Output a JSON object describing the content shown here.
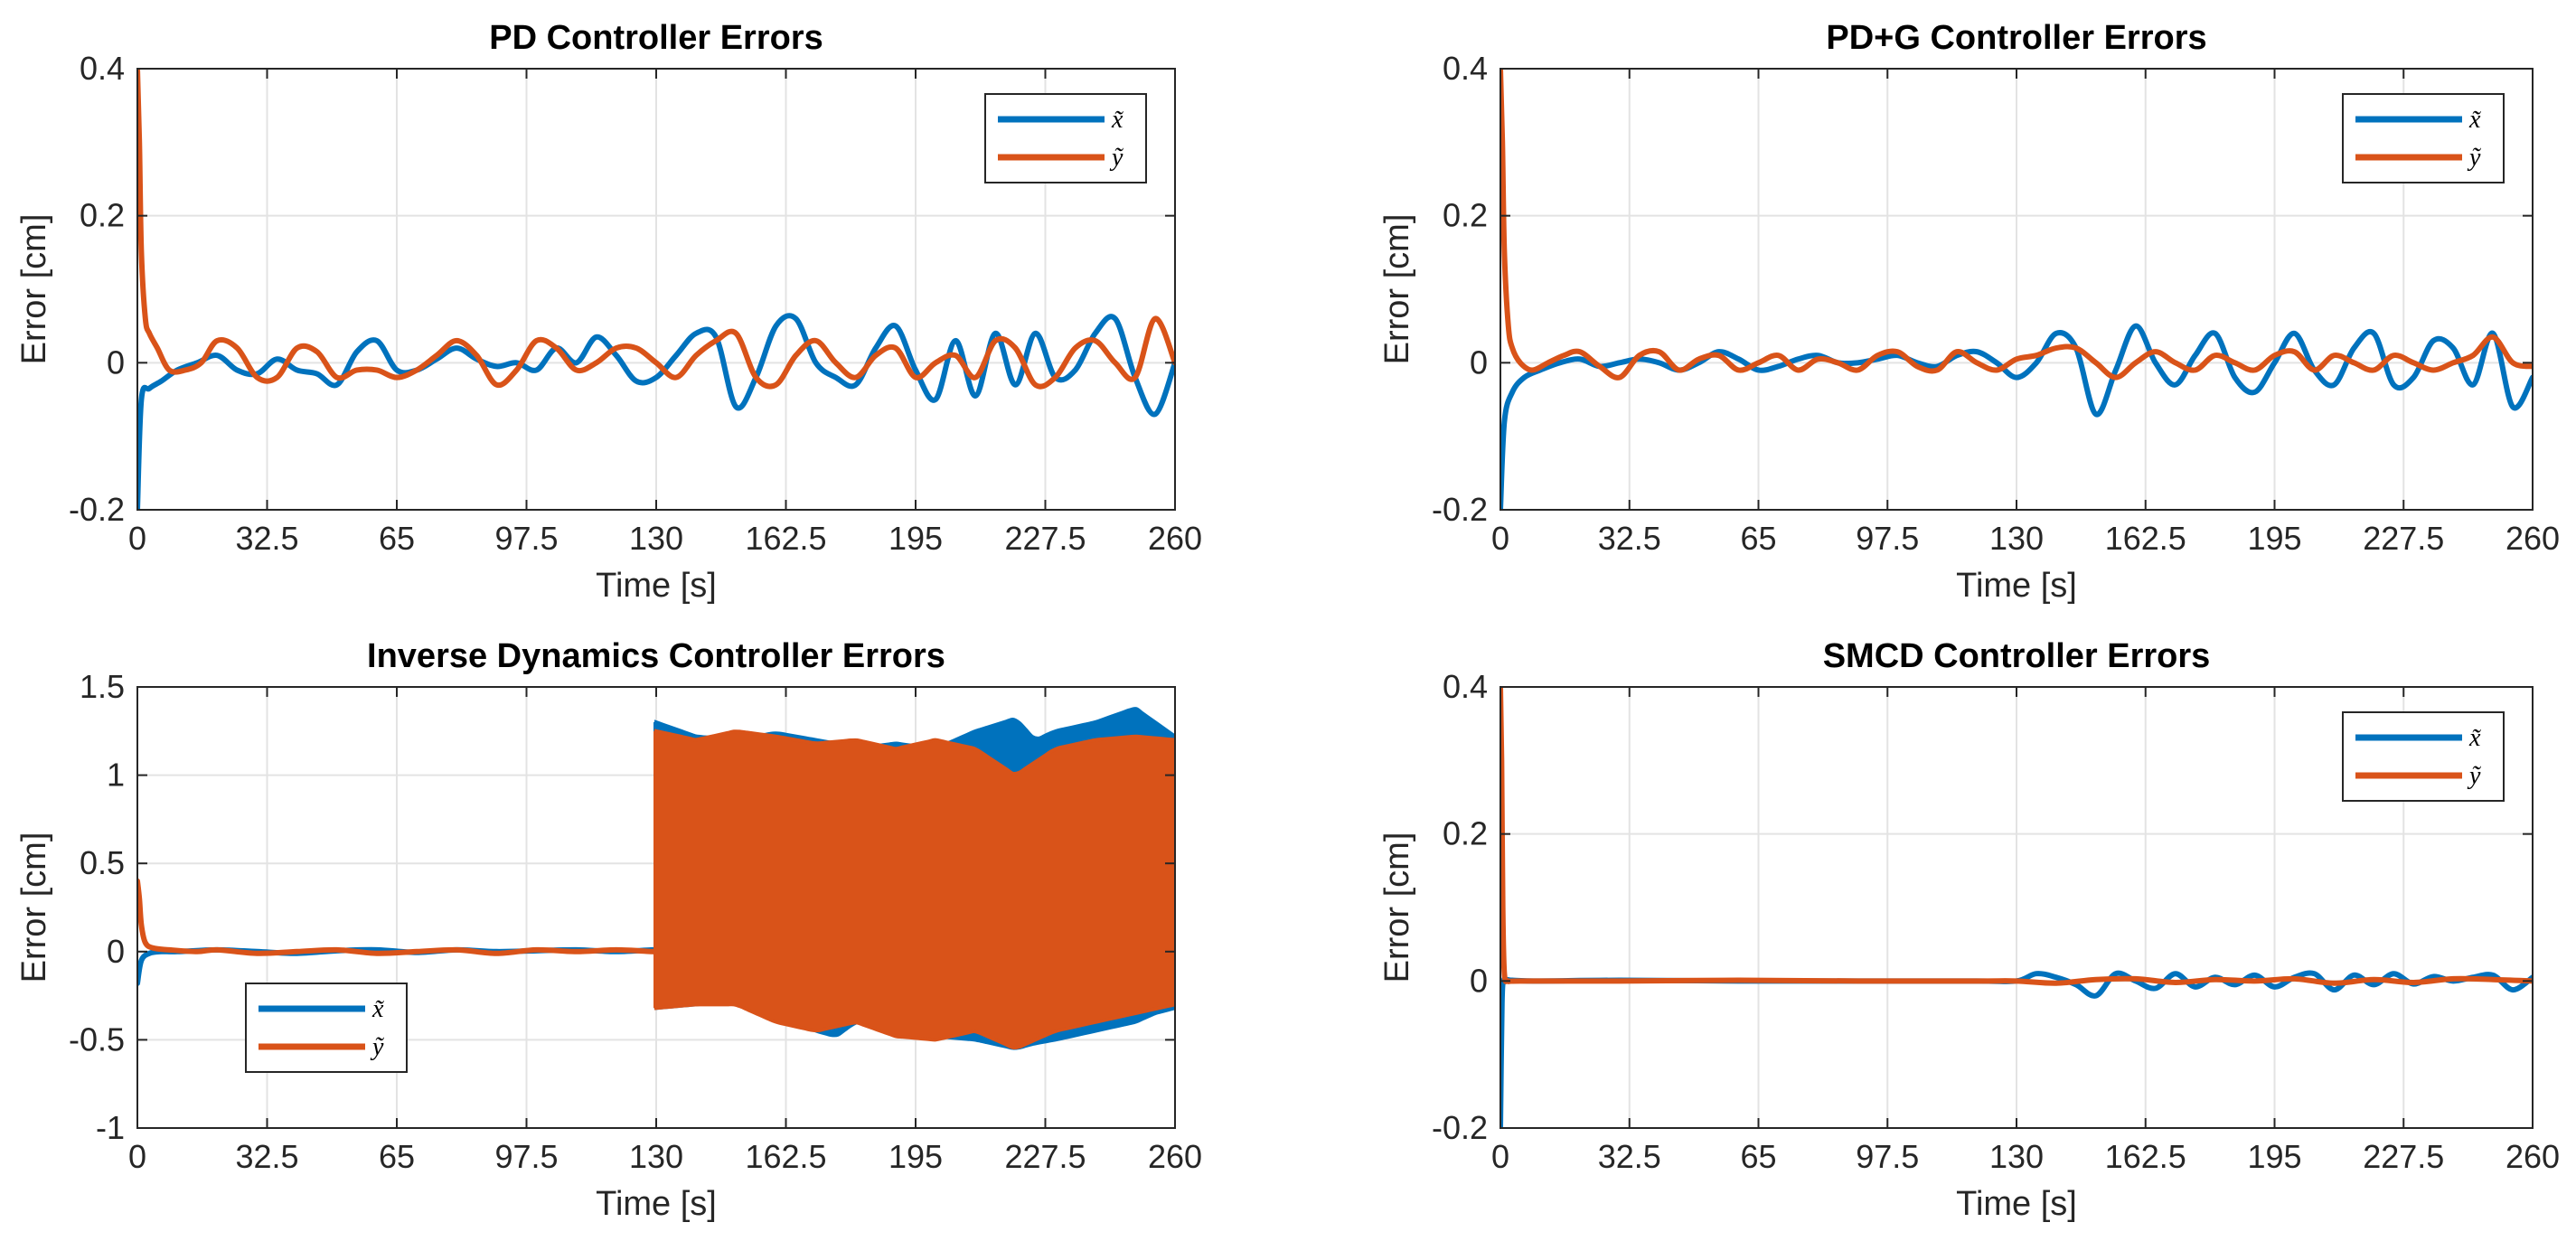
{
  "chart_data": [
    {
      "type": "line",
      "title": "PD Controller Errors",
      "xlabel": "Time [s]",
      "ylabel": "Error [cm]",
      "xlim": [
        0,
        260
      ],
      "ylim": [
        -0.2,
        0.4
      ],
      "xticks": [
        0,
        32.5,
        65,
        97.5,
        130,
        162.5,
        195,
        227.5,
        260
      ],
      "xtick_labels": [
        "0",
        "32.5",
        "65",
        "97.5",
        "130",
        "162.5",
        "195",
        "227.5",
        "260"
      ],
      "yticks": [
        -0.2,
        0,
        0.2,
        0.4
      ],
      "ytick_labels": [
        "-0.2",
        "0",
        "0.2",
        "0.4"
      ],
      "grid": true,
      "legend_position": "top-right",
      "series": [
        {
          "name": "x̃",
          "color": "#0072BD",
          "x": [
            0,
            1,
            3,
            6,
            10,
            15,
            20,
            25,
            30,
            35,
            40,
            45,
            50,
            55,
            60,
            65,
            70,
            75,
            80,
            85,
            90,
            95,
            100,
            105,
            110,
            115,
            120,
            125,
            130,
            135,
            140,
            145,
            150,
            155,
            160,
            165,
            170,
            175,
            180,
            185,
            190,
            195,
            200,
            205,
            210,
            215,
            220,
            225,
            230,
            235,
            240,
            245,
            250,
            255,
            260
          ],
          "y": [
            -0.2,
            -0.05,
            -0.035,
            -0.025,
            -0.01,
            0.0,
            0.01,
            -0.01,
            -0.015,
            0.005,
            -0.01,
            -0.015,
            -0.03,
            0.015,
            0.03,
            -0.01,
            -0.01,
            0.005,
            0.02,
            0.005,
            -0.005,
            0.0,
            -0.01,
            0.02,
            0.0,
            0.035,
            0.01,
            -0.025,
            -0.02,
            0.01,
            0.04,
            0.035,
            -0.06,
            -0.02,
            0.05,
            0.06,
            0.0,
            -0.02,
            -0.03,
            0.02,
            0.05,
            -0.01,
            -0.05,
            0.03,
            -0.045,
            0.04,
            -0.03,
            0.04,
            -0.02,
            -0.01,
            0.04,
            0.06,
            -0.02,
            -0.07,
            0.0
          ]
        },
        {
          "name": "ỹ",
          "color": "#D95319",
          "x": [
            0,
            0.5,
            1,
            2,
            3,
            5,
            8,
            12,
            16,
            20,
            25,
            30,
            35,
            40,
            45,
            50,
            55,
            60,
            65,
            70,
            75,
            80,
            85,
            90,
            95,
            100,
            105,
            110,
            115,
            120,
            125,
            130,
            135,
            140,
            145,
            150,
            155,
            160,
            165,
            170,
            175,
            180,
            185,
            190,
            195,
            200,
            205,
            210,
            215,
            220,
            225,
            230,
            235,
            240,
            245,
            250,
            255,
            260
          ],
          "y": [
            0.4,
            0.3,
            0.15,
            0.06,
            0.04,
            0.02,
            -0.01,
            -0.01,
            0.0,
            0.03,
            0.02,
            -0.02,
            -0.02,
            0.02,
            0.015,
            -0.02,
            -0.01,
            -0.01,
            -0.02,
            -0.01,
            0.01,
            0.03,
            0.01,
            -0.03,
            -0.01,
            0.03,
            0.02,
            -0.01,
            0.0,
            0.02,
            0.02,
            0.0,
            -0.02,
            0.01,
            0.03,
            0.04,
            -0.02,
            -0.03,
            0.01,
            0.03,
            0.0,
            -0.02,
            0.01,
            0.02,
            -0.02,
            0.0,
            0.01,
            -0.02,
            0.03,
            0.02,
            -0.03,
            -0.02,
            0.02,
            0.03,
            0.0,
            -0.02,
            0.06,
            0.0
          ]
        }
      ]
    },
    {
      "type": "line",
      "title": "PD+G Controller Errors",
      "xlabel": "Time [s]",
      "ylabel": "Error [cm]",
      "xlim": [
        0,
        260
      ],
      "ylim": [
        -0.2,
        0.4
      ],
      "xticks": [
        0,
        32.5,
        65,
        97.5,
        130,
        162.5,
        195,
        227.5,
        260
      ],
      "xtick_labels": [
        "0",
        "32.5",
        "65",
        "97.5",
        "130",
        "162.5",
        "195",
        "227.5",
        "260"
      ],
      "yticks": [
        -0.2,
        0,
        0.2,
        0.4
      ],
      "ytick_labels": [
        "-0.2",
        "0",
        "0.2",
        "0.4"
      ],
      "grid": true,
      "legend_position": "top-right",
      "series": [
        {
          "name": "x̃",
          "color": "#0072BD",
          "x": [
            0,
            1,
            3,
            6,
            10,
            15,
            20,
            25,
            30,
            35,
            40,
            45,
            50,
            55,
            60,
            65,
            70,
            75,
            80,
            85,
            90,
            95,
            100,
            105,
            110,
            115,
            120,
            125,
            130,
            135,
            140,
            145,
            150,
            155,
            160,
            165,
            170,
            175,
            180,
            185,
            190,
            195,
            200,
            205,
            210,
            215,
            220,
            225,
            230,
            235,
            240,
            245,
            250,
            255,
            260
          ],
          "y": [
            -0.2,
            -0.08,
            -0.04,
            -0.02,
            -0.01,
            0.0,
            0.005,
            -0.005,
            0.0,
            0.005,
            0.0,
            -0.01,
            0.0,
            0.015,
            0.005,
            -0.01,
            -0.005,
            0.005,
            0.01,
            0.0,
            0.0,
            0.005,
            0.01,
            0.0,
            -0.005,
            0.01,
            0.015,
            0.0,
            -0.02,
            0.0,
            0.04,
            0.02,
            -0.07,
            -0.01,
            0.05,
            0.0,
            -0.03,
            0.01,
            0.04,
            -0.02,
            -0.04,
            0.0,
            0.04,
            -0.01,
            -0.03,
            0.02,
            0.04,
            -0.03,
            -0.02,
            0.03,
            0.02,
            -0.03,
            0.04,
            -0.06,
            -0.02
          ]
        },
        {
          "name": "ỹ",
          "color": "#D95319",
          "x": [
            0,
            0.5,
            1,
            2,
            3,
            5,
            8,
            12,
            16,
            20,
            25,
            30,
            35,
            40,
            45,
            50,
            55,
            60,
            65,
            70,
            75,
            80,
            85,
            90,
            95,
            100,
            105,
            110,
            115,
            120,
            125,
            130,
            135,
            140,
            145,
            150,
            155,
            160,
            165,
            170,
            175,
            180,
            185,
            190,
            195,
            200,
            205,
            210,
            215,
            220,
            225,
            230,
            235,
            240,
            245,
            250,
            255,
            260
          ],
          "y": [
            0.4,
            0.3,
            0.15,
            0.05,
            0.02,
            0.0,
            -0.01,
            0.0,
            0.01,
            0.015,
            -0.005,
            -0.02,
            0.01,
            0.015,
            -0.01,
            0.005,
            0.01,
            -0.01,
            0.0,
            0.01,
            -0.01,
            0.005,
            0.0,
            -0.01,
            0.01,
            0.015,
            -0.005,
            -0.01,
            0.015,
            0.0,
            -0.01,
            0.005,
            0.01,
            0.02,
            0.02,
            0.0,
            -0.02,
            0.0,
            0.015,
            0.0,
            -0.01,
            0.01,
            0.0,
            -0.01,
            0.01,
            0.015,
            -0.01,
            0.01,
            0.0,
            -0.01,
            0.01,
            0.0,
            -0.01,
            0.0,
            0.01,
            0.035,
            0.0,
            -0.005
          ]
        }
      ]
    },
    {
      "type": "line",
      "title": "Inverse Dynamics Controller Errors",
      "xlabel": "Time [s]",
      "ylabel": "Error [cm]",
      "xlim": [
        0,
        260
      ],
      "ylim": [
        -1,
        1.5
      ],
      "xticks": [
        0,
        32.5,
        65,
        97.5,
        130,
        162.5,
        195,
        227.5,
        260
      ],
      "xtick_labels": [
        "0",
        "32.5",
        "65",
        "97.5",
        "130",
        "162.5",
        "195",
        "227.5",
        "260"
      ],
      "yticks": [
        -1,
        -0.5,
        0,
        0.5,
        1,
        1.5
      ],
      "ytick_labels": [
        "-1",
        "-0.5",
        "0",
        "0.5",
        "1",
        "1.5"
      ],
      "grid": true,
      "legend_position": "bottom-left",
      "oscillation_start": 130,
      "series": [
        {
          "name": "x̃",
          "color": "#0072BD",
          "x": [
            0,
            1,
            3,
            6,
            10,
            20,
            30,
            40,
            50,
            60,
            70,
            80,
            90,
            100,
            110,
            120,
            129
          ],
          "y": [
            -0.18,
            -0.05,
            -0.01,
            0.0,
            0.0,
            0.01,
            0.0,
            -0.01,
            0.005,
            0.01,
            -0.005,
            0.01,
            0.0,
            0.005,
            0.01,
            0.0,
            0.01
          ],
          "envelope": {
            "x": [
              130,
              140,
              150,
              160,
              170,
              175,
              180,
              190,
              200,
              210,
              220,
              225,
              230,
              240,
              250,
              255,
              260
            ],
            "upper": [
              1.3,
              1.22,
              1.2,
              1.24,
              1.2,
              1.18,
              1.15,
              1.18,
              1.15,
              1.25,
              1.32,
              1.2,
              1.25,
              1.3,
              1.38,
              1.3,
              1.22
            ],
            "lower": [
              -0.32,
              -0.3,
              -0.28,
              -0.35,
              -0.45,
              -0.48,
              -0.4,
              -0.42,
              -0.48,
              -0.5,
              -0.55,
              -0.52,
              -0.5,
              -0.45,
              -0.4,
              -0.35,
              -0.32
            ]
          }
        },
        {
          "name": "ỹ",
          "color": "#D95319",
          "x": [
            0,
            0.5,
            1,
            2,
            4,
            8,
            15,
            20,
            30,
            40,
            50,
            60,
            70,
            80,
            90,
            100,
            110,
            120,
            129
          ],
          "y": [
            0.4,
            0.3,
            0.15,
            0.05,
            0.02,
            0.01,
            0.0,
            0.01,
            -0.01,
            0.0,
            0.01,
            -0.01,
            0.0,
            0.01,
            -0.01,
            0.01,
            0.0,
            0.01,
            0.0
          ],
          "envelope": {
            "x": [
              130,
              140,
              150,
              160,
              170,
              180,
              190,
              200,
              210,
              220,
              230,
              240,
              250,
              260
            ],
            "upper": [
              1.25,
              1.2,
              1.25,
              1.22,
              1.18,
              1.2,
              1.15,
              1.2,
              1.15,
              1.0,
              1.15,
              1.2,
              1.22,
              1.2
            ],
            "lower": [
              -0.32,
              -0.3,
              -0.3,
              -0.4,
              -0.45,
              -0.4,
              -0.48,
              -0.5,
              -0.45,
              -0.55,
              -0.45,
              -0.4,
              -0.35,
              -0.3
            ]
          }
        }
      ]
    },
    {
      "type": "line",
      "title": "SMCD Controller Errors",
      "xlabel": "Time [s]",
      "ylabel": "Error [cm]",
      "xlim": [
        0,
        260
      ],
      "ylim": [
        -0.2,
        0.4
      ],
      "xticks": [
        0,
        32.5,
        65,
        97.5,
        130,
        162.5,
        195,
        227.5,
        260
      ],
      "xtick_labels": [
        "0",
        "32.5",
        "65",
        "97.5",
        "130",
        "162.5",
        "195",
        "227.5",
        "260"
      ],
      "yticks": [
        -0.2,
        0,
        0.2,
        0.4
      ],
      "ytick_labels": [
        "-0.2",
        "0",
        "0.2",
        "0.4"
      ],
      "grid": true,
      "legend_position": "top-right",
      "series": [
        {
          "name": "x̃",
          "color": "#0072BD",
          "x": [
            0,
            0.4,
            0.8,
            1.5,
            3,
            10,
            30,
            60,
            90,
            120,
            130,
            135,
            140,
            145,
            150,
            155,
            160,
            165,
            170,
            175,
            180,
            185,
            190,
            195,
            200,
            205,
            210,
            215,
            220,
            225,
            230,
            235,
            240,
            245,
            250,
            255,
            260
          ],
          "y": [
            -0.2,
            -0.03,
            0.0,
            0.002,
            0.001,
            0.0,
            0.001,
            0.0,
            0.0,
            0.0,
            0.0,
            0.01,
            0.005,
            -0.005,
            -0.02,
            0.01,
            0.0,
            -0.01,
            0.01,
            -0.008,
            0.005,
            -0.005,
            0.008,
            -0.008,
            0.005,
            0.01,
            -0.012,
            0.008,
            -0.005,
            0.01,
            -0.004,
            0.006,
            0.0,
            0.005,
            0.008,
            -0.012,
            0.005
          ]
        },
        {
          "name": "ỹ",
          "color": "#D95319",
          "x": [
            0,
            0.3,
            0.6,
            1,
            2,
            5,
            30,
            60,
            90,
            120,
            130,
            140,
            150,
            160,
            170,
            180,
            190,
            200,
            210,
            220,
            230,
            240,
            250,
            260
          ],
          "y": [
            0.4,
            0.3,
            0.1,
            0.01,
            0.0,
            0.0,
            0.0,
            0.001,
            0.0,
            0.0,
            0.0,
            -0.003,
            0.002,
            0.003,
            -0.002,
            0.002,
            0.0,
            0.003,
            -0.003,
            0.002,
            -0.002,
            0.003,
            0.002,
            0.0
          ]
        }
      ]
    }
  ]
}
